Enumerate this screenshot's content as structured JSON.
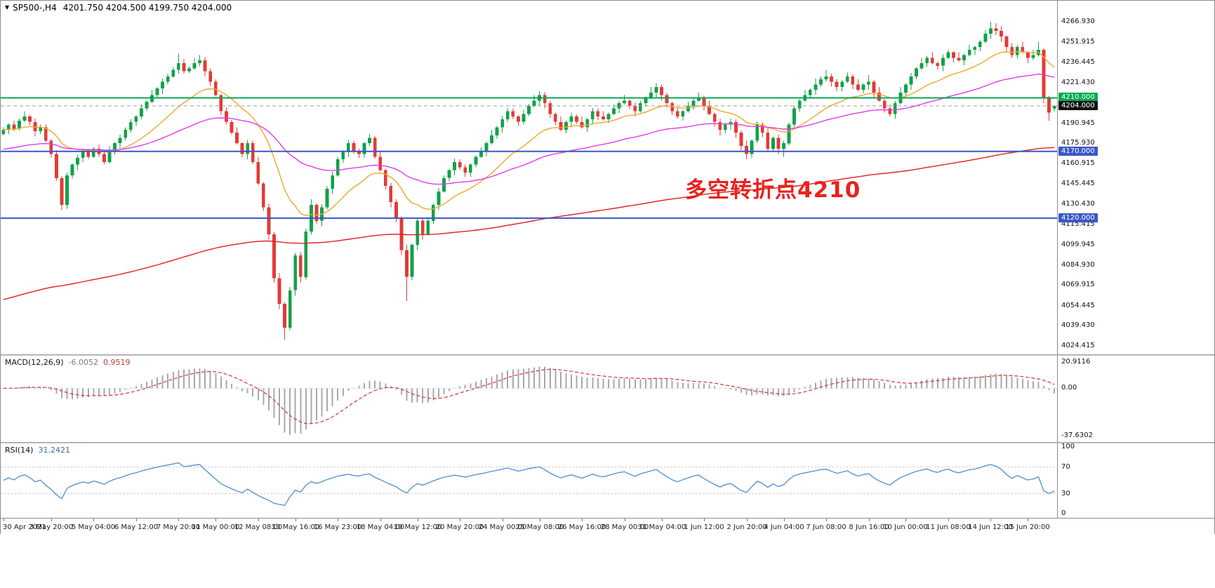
{
  "window": {
    "bg": "#ffffff"
  },
  "header": {
    "icons": {
      "collapse": "▼"
    },
    "symbol_period": "SP500-,H4",
    "ohlc_display": "4201.750 4204.500 4199.750 4204.000"
  },
  "annotation": {
    "text": "多空转折点4210",
    "color": "#e8221c"
  },
  "indicator_labels": {
    "macd_name": "MACD(12,26,9)",
    "macd_main": "-6.0052",
    "macd_signal": "0.9519",
    "rsi_name": "RSI(14)",
    "rsi_value": "31.2421"
  },
  "chart_data": {
    "type": "candlestick",
    "symbol": "SP500-",
    "timeframe": "H4",
    "current_bar": {
      "open": 4201.75,
      "high": 4204.5,
      "low": 4199.75,
      "close": 4204.0
    },
    "colors": {
      "up": "#12a14b",
      "down": "#e23b36"
    },
    "y_axis_ticks": [
      "4266.930",
      "4251.915",
      "4236.445",
      "4221.430",
      "4190.945",
      "4175.930",
      "4160.915",
      "4145.445",
      "4130.430",
      "4115.415",
      "4099.945",
      "4084.930",
      "4069.915",
      "4054.445",
      "4039.430",
      "4024.415"
    ],
    "price_lines": [
      {
        "price": 4210.0,
        "label": "4210.000",
        "color": "#00a94f",
        "width": 2,
        "style": "solid"
      },
      {
        "price": 4204.0,
        "label": "4204.000",
        "color": "#9a9a9a",
        "label_bg": "#111111",
        "width": 1,
        "style": "dash"
      },
      {
        "price": 4170.0,
        "label": "4170.000",
        "color": "#3a57c8",
        "width": 2,
        "style": "solid"
      },
      {
        "price": 4120.0,
        "label": "4120.000",
        "color": "#3a57c8",
        "width": 2,
        "style": "solid"
      }
    ],
    "moving_averages": [
      {
        "name": "fast-ma",
        "period": 18,
        "seed": 4186,
        "color": "#efa72f"
      },
      {
        "name": "mid-ma",
        "period": 55,
        "seed": 4171,
        "color": "#e23ce2"
      },
      {
        "name": "slow-ma",
        "period": 240,
        "seed": 4058,
        "color": "#df1f1f"
      }
    ],
    "macd": {
      "params": [
        12,
        26,
        9
      ],
      "main": -6.0052,
      "signal": 0.9519,
      "axis_ticks": [
        "20.9116",
        "0.00",
        "-37.6302"
      ],
      "hist_color": "#a8a8a8",
      "signal_color": "#d63333"
    },
    "rsi": {
      "period": 14,
      "value": 31.2421,
      "axis_ticks": [
        "100",
        "70",
        "30",
        "0"
      ],
      "levels": [
        70,
        30
      ],
      "color": "#4a8fd4"
    },
    "time_ticks": [
      {
        "bar": 0,
        "label": "30 Apr 2021"
      },
      {
        "bar": 9,
        "label": "3 May 20:00"
      },
      {
        "bar": 17,
        "label": "5 May 04:00"
      },
      {
        "bar": 25,
        "label": "6 May 12:00"
      },
      {
        "bar": 33,
        "label": "7 May 20:00"
      },
      {
        "bar": 40,
        "label": "11 May 00:00"
      },
      {
        "bar": 48,
        "label": "12 May 08:00"
      },
      {
        "bar": 55,
        "label": "13 May 16:00"
      },
      {
        "bar": 63,
        "label": "16 May 23:00"
      },
      {
        "bar": 71,
        "label": "18 May 04:00"
      },
      {
        "bar": 78,
        "label": "19 May 12:00"
      },
      {
        "bar": 86,
        "label": "20 May 20:00"
      },
      {
        "bar": 94,
        "label": "24 May 00:00"
      },
      {
        "bar": 101,
        "label": "25 May 08:00"
      },
      {
        "bar": 109,
        "label": "26 May 16:00"
      },
      {
        "bar": 117,
        "label": "28 May 00:00"
      },
      {
        "bar": 124,
        "label": "31 May 04:00"
      },
      {
        "bar": 132,
        "label": "1 Jun 12:00"
      },
      {
        "bar": 140,
        "label": "2 Jun 20:00"
      },
      {
        "bar": 147,
        "label": "4 Jun 04:00"
      },
      {
        "bar": 155,
        "label": "7 Jun 08:00"
      },
      {
        "bar": 163,
        "label": "8 Jun 16:00"
      },
      {
        "bar": 170,
        "label": "10 Jun 00:00"
      },
      {
        "bar": 178,
        "label": "11 Jun 08:00"
      },
      {
        "bar": 186,
        "label": "14 Jun 12:00"
      },
      {
        "bar": 193,
        "label": "15 Jun 20:00"
      }
    ],
    "candles": [
      [
        4183,
        4188,
        4182,
        4186
      ],
      [
        4186,
        4191,
        4183,
        4190
      ],
      [
        4190,
        4193,
        4185,
        4187
      ],
      [
        4187,
        4194.5,
        4185.5,
        4193
      ],
      [
        4193,
        4200,
        4192,
        4196
      ],
      [
        4196,
        4197,
        4189.5,
        4192
      ],
      [
        4192,
        4194.5,
        4181,
        4185
      ],
      [
        4185,
        4190,
        4183,
        4188
      ],
      [
        4188,
        4190,
        4177,
        4178
      ],
      [
        4178,
        4179,
        4165,
        4168
      ],
      [
        4168,
        4171,
        4148,
        4150
      ],
      [
        4150,
        4151.5,
        4126,
        4130
      ],
      [
        4130,
        4154,
        4127,
        4152
      ],
      [
        4152,
        4161,
        4149.5,
        4160
      ],
      [
        4160,
        4167.5,
        4156,
        4165
      ],
      [
        4165,
        4172,
        4162,
        4170
      ],
      [
        4170,
        4172,
        4164,
        4166
      ],
      [
        4166,
        4173,
        4165,
        4172
      ],
      [
        4172,
        4175,
        4166,
        4168
      ],
      [
        4168,
        4169.5,
        4160.5,
        4162
      ],
      [
        4162,
        4174,
        4161,
        4170
      ],
      [
        4170,
        4177,
        4167.5,
        4176
      ],
      [
        4176,
        4182.5,
        4172,
        4180
      ],
      [
        4180,
        4188,
        4178,
        4186
      ],
      [
        4186,
        4194,
        4184,
        4192
      ],
      [
        4192,
        4197,
        4189,
        4196
      ],
      [
        4196,
        4205,
        4194,
        4202
      ],
      [
        4202,
        4208.5,
        4200.5,
        4207
      ],
      [
        4207,
        4216,
        4206,
        4212
      ],
      [
        4212,
        4218,
        4209.5,
        4217
      ],
      [
        4217,
        4224.5,
        4213,
        4222
      ],
      [
        4222,
        4228,
        4220,
        4226
      ],
      [
        4226,
        4233,
        4225,
        4231
      ],
      [
        4231,
        4243,
        4228,
        4236
      ],
      [
        4236,
        4239,
        4228,
        4230
      ],
      [
        4230,
        4233.5,
        4228.5,
        4232
      ],
      [
        4232,
        4240,
        4231,
        4236
      ],
      [
        4236,
        4242,
        4233.5,
        4238
      ],
      [
        4238,
        4240.5,
        4226,
        4230
      ],
      [
        4230,
        4232,
        4219,
        4222
      ],
      [
        4222,
        4224,
        4211,
        4212
      ],
      [
        4212,
        4213,
        4197,
        4200
      ],
      [
        4200,
        4203,
        4190,
        4192
      ],
      [
        4192,
        4193.5,
        4182.5,
        4184
      ],
      [
        4184,
        4188,
        4175,
        4176
      ],
      [
        4176,
        4177,
        4165.5,
        4168
      ],
      [
        4168,
        4178.5,
        4164,
        4176
      ],
      [
        4176,
        4178,
        4160.5,
        4162
      ],
      [
        4162,
        4166,
        4145,
        4146
      ],
      [
        4146,
        4147,
        4125.5,
        4128
      ],
      [
        4128,
        4131,
        4104,
        4108
      ],
      [
        4108,
        4109.5,
        4072,
        4075
      ],
      [
        4075,
        4079,
        4052,
        4056
      ],
      [
        4056,
        4057,
        4029,
        4038
      ],
      [
        4038,
        4068.5,
        4036,
        4066
      ],
      [
        4066,
        4094,
        4062,
        4092
      ],
      [
        4092,
        4094.5,
        4072,
        4076
      ],
      [
        4076,
        4112,
        4074,
        4110
      ],
      [
        4110,
        4134,
        4108,
        4130
      ],
      [
        4130,
        4131,
        4115.5,
        4118
      ],
      [
        4118,
        4130.5,
        4114,
        4128
      ],
      [
        4128,
        4144,
        4126.5,
        4142
      ],
      [
        4142,
        4154.5,
        4138,
        4152
      ],
      [
        4152,
        4166,
        4151,
        4164
      ],
      [
        4164,
        4171,
        4161.5,
        4170
      ],
      [
        4170,
        4178.5,
        4166,
        4176
      ],
      [
        4176,
        4178,
        4168,
        4170
      ],
      [
        4170,
        4172,
        4165,
        4168
      ],
      [
        4168,
        4177,
        4165,
        4176
      ],
      [
        4176,
        4183,
        4174,
        4180
      ],
      [
        4180,
        4181.5,
        4164.5,
        4166
      ],
      [
        4166,
        4170,
        4155,
        4156
      ],
      [
        4156,
        4157,
        4141.5,
        4144
      ],
      [
        4144,
        4146.5,
        4128,
        4132
      ],
      [
        4132,
        4134,
        4117,
        4120
      ],
      [
        4120,
        4121.5,
        4092.5,
        4096
      ],
      [
        4096,
        4100,
        4058,
        4076
      ],
      [
        4076,
        4101,
        4073.5,
        4100
      ],
      [
        4100,
        4120.5,
        4096,
        4118
      ],
      [
        4118,
        4120,
        4104,
        4108
      ],
      [
        4108,
        4120,
        4107,
        4118
      ],
      [
        4118,
        4131,
        4115.5,
        4130
      ],
      [
        4130,
        4142.5,
        4126,
        4140
      ],
      [
        4140,
        4152,
        4139,
        4150
      ],
      [
        4150,
        4157,
        4147.5,
        4156
      ],
      [
        4156,
        4164.5,
        4152,
        4162
      ],
      [
        4162,
        4164,
        4156,
        4158
      ],
      [
        4158,
        4160,
        4151,
        4154
      ],
      [
        4154,
        4161,
        4151,
        4160
      ],
      [
        4160,
        4167,
        4158,
        4166
      ],
      [
        4166,
        4173,
        4165,
        4170
      ],
      [
        4170,
        4177.5,
        4166.5,
        4176
      ],
      [
        4176,
        4186,
        4175,
        4182
      ],
      [
        4182,
        4189,
        4179.5,
        4188
      ],
      [
        4188,
        4196.5,
        4184,
        4194
      ],
      [
        4194,
        4202,
        4192,
        4200
      ],
      [
        4200,
        4202,
        4194,
        4196
      ],
      [
        4196,
        4197,
        4189,
        4192
      ],
      [
        4192,
        4201,
        4190,
        4198
      ],
      [
        4198,
        4205.5,
        4196.5,
        4204
      ],
      [
        4204,
        4212,
        4203,
        4208
      ],
      [
        4208,
        4215,
        4204.5,
        4212
      ],
      [
        4212,
        4214.5,
        4202,
        4206
      ],
      [
        4206,
        4208,
        4195,
        4198
      ],
      [
        4198,
        4199,
        4189.5,
        4192
      ],
      [
        4192,
        4196,
        4185,
        4186
      ],
      [
        4186,
        4193,
        4183.5,
        4192
      ],
      [
        4192,
        4199,
        4188,
        4196
      ],
      [
        4196,
        4197.5,
        4190.5,
        4192
      ],
      [
        4192,
        4196,
        4187,
        4188
      ],
      [
        4188,
        4195,
        4184.5,
        4194
      ],
      [
        4194,
        4202.5,
        4190,
        4200
      ],
      [
        4200,
        4202,
        4193.5,
        4196
      ],
      [
        4196,
        4200,
        4193,
        4194
      ],
      [
        4194,
        4199,
        4191,
        4198
      ],
      [
        4198,
        4205,
        4197,
        4202
      ],
      [
        4202,
        4207.5,
        4198.5,
        4206
      ],
      [
        4206,
        4212,
        4205,
        4208
      ],
      [
        4208,
        4209,
        4201.5,
        4204
      ],
      [
        4204,
        4206.5,
        4196,
        4200
      ],
      [
        4200,
        4208,
        4199,
        4206
      ],
      [
        4206,
        4211,
        4203.5,
        4210
      ],
      [
        4210,
        4218,
        4209,
        4214
      ],
      [
        4214,
        4221,
        4210.5,
        4218
      ],
      [
        4218,
        4220,
        4208,
        4212
      ],
      [
        4212,
        4214,
        4203,
        4206
      ],
      [
        4206,
        4207,
        4197,
        4200
      ],
      [
        4200,
        4203,
        4194.5,
        4196
      ],
      [
        4196,
        4201,
        4193,
        4200
      ],
      [
        4200,
        4207,
        4199,
        4204
      ],
      [
        4204,
        4209.5,
        4201,
        4208
      ],
      [
        4208,
        4214,
        4207,
        4210
      ],
      [
        4210,
        4211.5,
        4200.5,
        4204
      ],
      [
        4204,
        4208,
        4197,
        4198
      ],
      [
        4198,
        4199,
        4188.5,
        4192
      ],
      [
        4192,
        4194.5,
        4182,
        4186
      ],
      [
        4186,
        4191,
        4183.5,
        4190
      ],
      [
        4190,
        4194.5,
        4186,
        4192
      ],
      [
        4192,
        4194,
        4180,
        4184
      ],
      [
        4184,
        4185.5,
        4170.5,
        4174
      ],
      [
        4174,
        4178,
        4164,
        4168
      ],
      [
        4168,
        4179,
        4165,
        4178
      ],
      [
        4178,
        4192.5,
        4176,
        4190
      ],
      [
        4190,
        4191.5,
        4180.5,
        4184
      ],
      [
        4184,
        4188,
        4170,
        4172
      ],
      [
        4172,
        4181,
        4169.5,
        4180
      ],
      [
        4180,
        4182.5,
        4168,
        4172
      ],
      [
        4172,
        4178,
        4166,
        4176
      ],
      [
        4176,
        4191.5,
        4174.5,
        4190
      ],
      [
        4190,
        4204,
        4188,
        4202
      ],
      [
        4202,
        4209,
        4199.5,
        4208
      ],
      [
        4208,
        4216,
        4207,
        4212
      ],
      [
        4212,
        4217,
        4209.5,
        4216
      ],
      [
        4216,
        4224.5,
        4212,
        4220
      ],
      [
        4220,
        4226,
        4218,
        4224
      ],
      [
        4224,
        4231,
        4222,
        4226
      ],
      [
        4226,
        4228,
        4218.5,
        4222
      ],
      [
        4222,
        4224,
        4215,
        4218
      ],
      [
        4218,
        4223,
        4215,
        4222
      ],
      [
        4222,
        4229,
        4221,
        4226
      ],
      [
        4226,
        4227.5,
        4216.5,
        4220
      ],
      [
        4220,
        4224,
        4215,
        4216
      ],
      [
        4216,
        4221,
        4213.5,
        4220
      ],
      [
        4220,
        4227,
        4216,
        4222
      ],
      [
        4222,
        4223.5,
        4210.5,
        4214
      ],
      [
        4214,
        4218,
        4207,
        4208
      ],
      [
        4208,
        4209,
        4199,
        4202
      ],
      [
        4202,
        4205,
        4196,
        4198
      ],
      [
        4198,
        4207.5,
        4194.5,
        4206
      ],
      [
        4206,
        4218,
        4205,
        4214
      ],
      [
        4214,
        4221,
        4211.5,
        4220
      ],
      [
        4220,
        4228.5,
        4216,
        4226
      ],
      [
        4226,
        4233,
        4224,
        4232
      ],
      [
        4232,
        4240,
        4231,
        4236
      ],
      [
        4236,
        4241.5,
        4233,
        4240
      ],
      [
        4240,
        4244,
        4235,
        4236
      ],
      [
        4236,
        4237,
        4231,
        4234
      ],
      [
        4234,
        4242.5,
        4230,
        4240
      ],
      [
        4240,
        4246,
        4239,
        4244
      ],
      [
        4244,
        4245,
        4236.5,
        4240
      ],
      [
        4240,
        4244,
        4237,
        4238
      ],
      [
        4238,
        4243,
        4234.5,
        4242
      ],
      [
        4242,
        4250,
        4241,
        4246
      ],
      [
        4246,
        4249,
        4242,
        4248
      ],
      [
        4248,
        4253,
        4245,
        4252
      ],
      [
        4252,
        4261,
        4251,
        4258
      ],
      [
        4258,
        4266.9,
        4254,
        4262
      ],
      [
        4262,
        4266,
        4257,
        4260
      ],
      [
        4260,
        4263.5,
        4252,
        4256
      ],
      [
        4256,
        4257,
        4245,
        4248
      ],
      [
        4248,
        4251,
        4240,
        4242
      ],
      [
        4242,
        4249.5,
        4239.5,
        4248
      ],
      [
        4248,
        4252,
        4243,
        4244
      ],
      [
        4244,
        4245,
        4236,
        4240
      ],
      [
        4240,
        4246,
        4238,
        4242
      ],
      [
        4242,
        4252,
        4241,
        4246
      ],
      [
        4246,
        4247,
        4206,
        4210
      ],
      [
        4210,
        4211.5,
        4193,
        4199
      ],
      [
        4201.75,
        4204.5,
        4199.75,
        4204
      ]
    ]
  }
}
